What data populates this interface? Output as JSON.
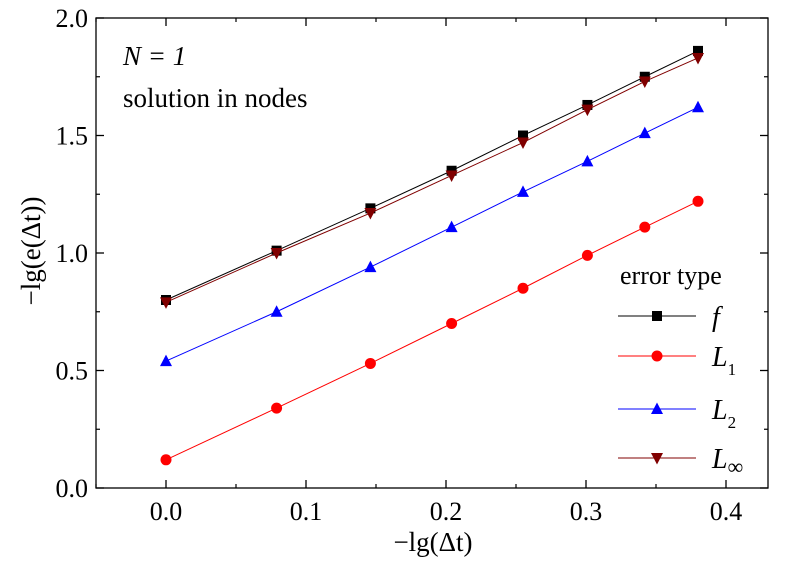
{
  "chart_data": {
    "type": "line",
    "title": "",
    "annotations": [
      "N = 1",
      "solution in nodes"
    ],
    "xlabel": "−lg(Δt)",
    "ylabel": "−lg(e(Δt))",
    "xlim": [
      -0.05,
      0.43
    ],
    "ylim": [
      0,
      2.0
    ],
    "xticks": [
      0.0,
      0.1,
      0.2,
      0.3,
      0.4
    ],
    "xtick_labels": [
      "0.0",
      "0.1",
      "0.2",
      "0.3",
      "0.4"
    ],
    "yticks": [
      0.0,
      0.5,
      1.0,
      1.5,
      2.0
    ],
    "ytick_labels": [
      "0.0",
      "0.5",
      "1.0",
      "1.5",
      "2.0"
    ],
    "grid": false,
    "legend": {
      "title": "error type",
      "placement": "bottom-right"
    },
    "x": [
      0.0,
      0.079,
      0.146,
      0.204,
      0.255,
      0.301,
      0.342,
      0.38
    ],
    "series": [
      {
        "name": "f",
        "color": "#000000",
        "marker": "square",
        "values": [
          0.8,
          1.01,
          1.19,
          1.35,
          1.5,
          1.63,
          1.75,
          1.86
        ]
      },
      {
        "name": "L1",
        "color": "#ff0000",
        "marker": "circle",
        "values": [
          0.12,
          0.34,
          0.53,
          0.7,
          0.85,
          0.99,
          1.11,
          1.22
        ]
      },
      {
        "name": "L2",
        "color": "#0000ff",
        "marker": "triangle-up",
        "values": [
          0.54,
          0.75,
          0.94,
          1.11,
          1.26,
          1.39,
          1.51,
          1.62
        ]
      },
      {
        "name": "L∞",
        "color": "#800000",
        "marker": "triangle-down",
        "values": [
          0.79,
          1.0,
          1.17,
          1.33,
          1.47,
          1.61,
          1.73,
          1.83
        ]
      }
    ]
  }
}
